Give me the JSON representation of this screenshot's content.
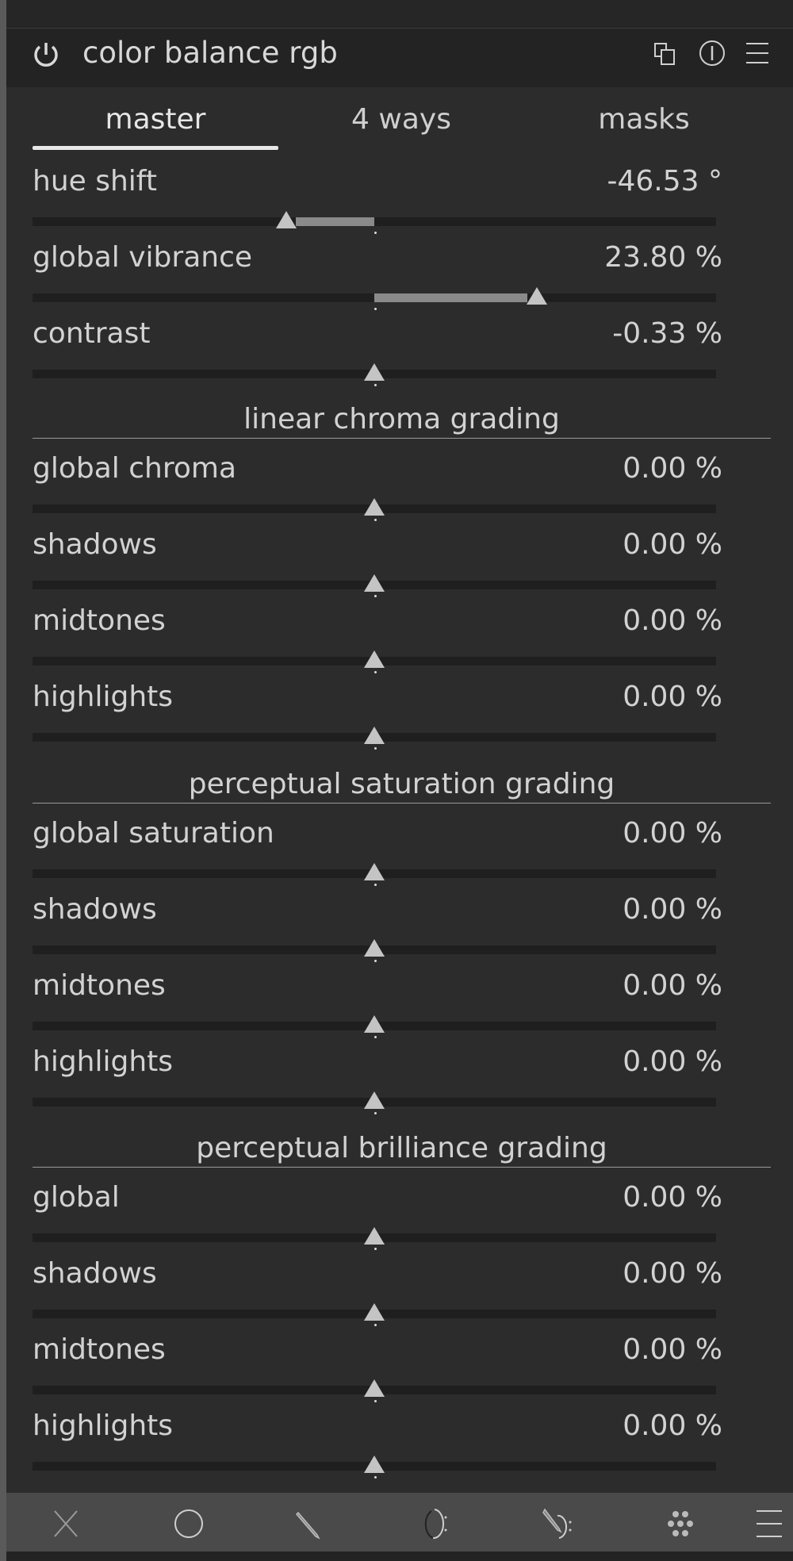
{
  "header": {
    "title": "color balance rgb",
    "icons": [
      "power-icon",
      "multi-instance-icon",
      "reset-icon",
      "presets-menu-icon"
    ]
  },
  "tabs": [
    {
      "label": "master",
      "active": true
    },
    {
      "label": "4 ways",
      "active": false
    },
    {
      "label": "masks",
      "active": false
    }
  ],
  "master": {
    "hue_shift": {
      "label": "hue shift",
      "value": "-46.53 °",
      "position": 0.371
    },
    "global_vibrance": {
      "label": "global vibrance",
      "value": "23.80 %",
      "position": 0.738
    },
    "contrast": {
      "label": "contrast",
      "value": "-0.33 %",
      "position": 0.5
    }
  },
  "sections": [
    {
      "title": "linear chroma grading",
      "sliders": [
        {
          "label": "global chroma",
          "value": "0.00 %"
        },
        {
          "label": "shadows",
          "value": "0.00 %"
        },
        {
          "label": "midtones",
          "value": "0.00 %"
        },
        {
          "label": "highlights",
          "value": "0.00 %"
        }
      ]
    },
    {
      "title": "perceptual saturation grading",
      "sliders": [
        {
          "label": "global saturation",
          "value": "0.00 %"
        },
        {
          "label": "shadows",
          "value": "0.00 %"
        },
        {
          "label": "midtones",
          "value": "0.00 %"
        },
        {
          "label": "highlights",
          "value": "0.00 %"
        }
      ]
    },
    {
      "title": "perceptual brilliance grading",
      "sliders": [
        {
          "label": "global",
          "value": "0.00 %"
        },
        {
          "label": "shadows",
          "value": "0.00 %"
        },
        {
          "label": "midtones",
          "value": "0.00 %"
        },
        {
          "label": "highlights",
          "value": "0.00 %"
        }
      ]
    }
  ],
  "toolbar": {
    "icons": [
      "disable-mask-icon",
      "circle-shape-icon",
      "path-shape-icon",
      "ellipse-shape-icon",
      "brush-shape-icon",
      "gradient-shape-icon",
      "mask-manager-menu-icon"
    ]
  },
  "colors": {
    "panel": "#2c2c2c",
    "header": "#232323",
    "toolbar": "#4a4a4a",
    "slider_fill": "#8a8a8a",
    "thumb": "#c4c4c4"
  }
}
